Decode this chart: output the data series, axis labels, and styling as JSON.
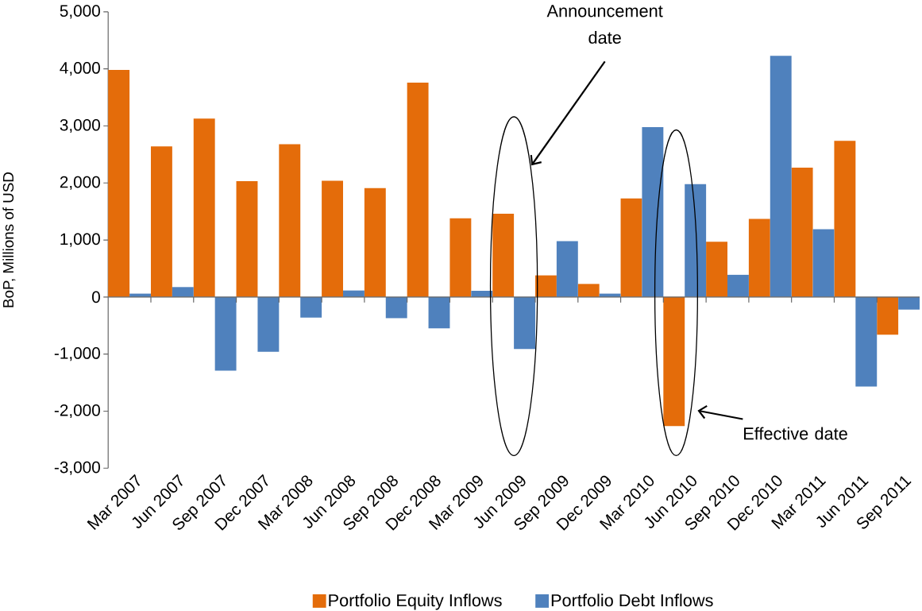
{
  "chart_data": {
    "type": "bar",
    "ylabel": "BoP, Millions of USD",
    "categories": [
      "Mar 2007",
      "Jun 2007",
      "Sep 2007",
      "Dec 2007",
      "Mar 2008",
      "Jun 2008",
      "Sep 2008",
      "Dec 2008",
      "Mar 2009",
      "Jun 2009",
      "Sep 2009",
      "Dec 2009",
      "Mar 2010",
      "Jun 2010",
      "Sep 2010",
      "Dec 2010",
      "Mar 2011",
      "Jun 2011",
      "Sep 2011"
    ],
    "series": [
      {
        "name": "Portfolio Equity Inflows",
        "color": "#e46c0a",
        "values": [
          3980,
          2640,
          3130,
          2030,
          2680,
          2040,
          1910,
          3760,
          1380,
          1460,
          380,
          230,
          1730,
          -2260,
          970,
          1370,
          2270,
          2740,
          -660
        ]
      },
      {
        "name": "Portfolio Debt Inflows",
        "color": "#4f81bd",
        "values": [
          60,
          175,
          -1290,
          -960,
          -360,
          115,
          -370,
          -550,
          110,
          -910,
          980,
          60,
          2980,
          1980,
          390,
          4230,
          1190,
          -1570,
          -220
        ]
      }
    ],
    "ylim": [
      -3000,
      5000
    ],
    "yticks": [
      {
        "value": -3000,
        "label": "-3,000"
      },
      {
        "value": -2000,
        "label": "-2,000"
      },
      {
        "value": -1000,
        "label": "-1,000"
      },
      {
        "value": 0,
        "label": "0"
      },
      {
        "value": 1000,
        "label": "1,000"
      },
      {
        "value": 2000,
        "label": "2,000"
      },
      {
        "value": 3000,
        "label": "3,000"
      },
      {
        "value": 4000,
        "label": "4,000"
      },
      {
        "value": 5000,
        "label": "5,000"
      }
    ],
    "legend": "bottom",
    "annotations": [
      "Announcement date",
      "Effective date"
    ]
  }
}
